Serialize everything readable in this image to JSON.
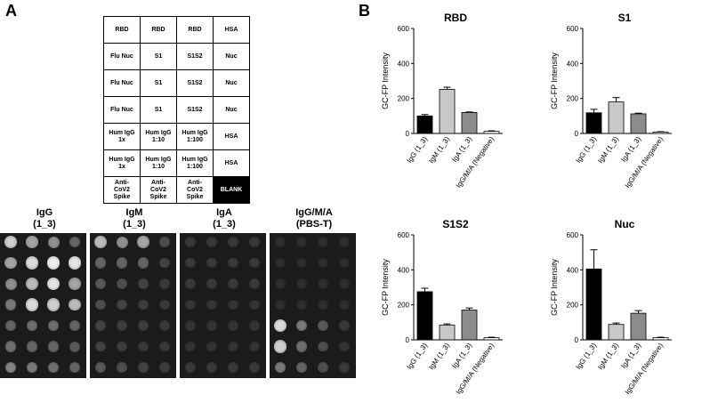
{
  "panel_a": {
    "letter": "A",
    "layout_table": [
      [
        "RBD",
        "RBD",
        "RBD",
        "HSA"
      ],
      [
        "Flu Nuc",
        "S1",
        "S1S2",
        "Nuc"
      ],
      [
        "Flu Nuc",
        "S1",
        "S1S2",
        "Nuc"
      ],
      [
        "Flu Nuc",
        "S1",
        "S1S2",
        "Nuc"
      ],
      [
        "Hum IgG\n1x",
        "Hum IgG\n1:10",
        "Hum IgG\n1:100",
        "HSA"
      ],
      [
        "Hum IgG\n1x",
        "Hum IgG\n1:10",
        "Hum IgG\n1:100",
        "HSA"
      ],
      [
        "Anti-\nCoV2\nSpike",
        "Anti-\nCoV2\nSpike",
        "Anti-\nCoV2\nSpike",
        "BLANK"
      ]
    ],
    "blots": [
      {
        "label": "IgG\n(1_3)",
        "intensity": [
          [
            0.8,
            0.6,
            0.5,
            0.3
          ],
          [
            0.6,
            0.85,
            0.95,
            0.9
          ],
          [
            0.5,
            0.7,
            0.9,
            0.6
          ],
          [
            0.4,
            0.85,
            0.8,
            0.7
          ],
          [
            0.3,
            0.35,
            0.35,
            0.3
          ],
          [
            0.35,
            0.3,
            0.3,
            0.25
          ],
          [
            0.45,
            0.4,
            0.35,
            0.3
          ]
        ]
      },
      {
        "label": "IgM\n(1_3)",
        "intensity": [
          [
            0.7,
            0.5,
            0.6,
            0.2
          ],
          [
            0.3,
            0.3,
            0.3,
            0.15
          ],
          [
            0.25,
            0.2,
            0.15,
            0.1
          ],
          [
            0.2,
            0.15,
            0.12,
            0.1
          ],
          [
            0.15,
            0.12,
            0.12,
            0.1
          ],
          [
            0.15,
            0.12,
            0.1,
            0.1
          ],
          [
            0.25,
            0.2,
            0.15,
            0.12
          ]
        ]
      },
      {
        "label": "IgA\n(1_3)",
        "intensity": [
          [
            0.1,
            0.1,
            0.1,
            0.1
          ],
          [
            0.1,
            0.1,
            0.1,
            0.1
          ],
          [
            0.1,
            0.1,
            0.1,
            0.1
          ],
          [
            0.08,
            0.08,
            0.08,
            0.08
          ],
          [
            0.08,
            0.08,
            0.08,
            0.08
          ],
          [
            0.08,
            0.08,
            0.08,
            0.08
          ],
          [
            0.1,
            0.1,
            0.1,
            0.1
          ]
        ]
      },
      {
        "label": "IgG/M/A\n(PBS-T)",
        "intensity": [
          [
            0.05,
            0.05,
            0.05,
            0.05
          ],
          [
            0.05,
            0.05,
            0.05,
            0.05
          ],
          [
            0.05,
            0.05,
            0.05,
            0.05
          ],
          [
            0.05,
            0.05,
            0.05,
            0.05
          ],
          [
            0.85,
            0.4,
            0.25,
            0.1
          ],
          [
            0.8,
            0.35,
            0.2,
            0.08
          ],
          [
            0.4,
            0.3,
            0.2,
            0.1
          ]
        ]
      }
    ]
  },
  "panel_b": {
    "letter": "B",
    "colors": {
      "IgG": "#000000",
      "IgM": "#c8c8c8",
      "IgA": "#8c8c8c",
      "Neg": "#ffffff"
    },
    "chart_data": [
      {
        "type": "bar",
        "title": "RBD",
        "ylabel": "GC-FP Intensity",
        "ylim": [
          0,
          600
        ],
        "yticks": [
          0,
          200,
          400,
          600
        ],
        "categories": [
          "IgG (1_3)",
          "IgM (1_3)",
          "IgA (1_3)",
          "IgG/M/A (Negative)"
        ],
        "values": [
          100,
          252,
          120,
          12
        ],
        "errors": [
          8,
          12,
          3,
          3
        ]
      },
      {
        "type": "bar",
        "title": "S1",
        "ylabel": "GC-FP Intensity",
        "ylim": [
          0,
          600
        ],
        "yticks": [
          0,
          200,
          400,
          600
        ],
        "categories": [
          "IgG (1_3)",
          "IgM (1_3)",
          "IgA (1_3)",
          "IgG/M/A (Negative)"
        ],
        "values": [
          118,
          180,
          112,
          8
        ],
        "errors": [
          20,
          25,
          4,
          2
        ]
      },
      {
        "type": "bar",
        "title": "S1S2",
        "ylabel": "GC-FP Intensity",
        "ylim": [
          0,
          600
        ],
        "yticks": [
          0,
          200,
          400,
          600
        ],
        "categories": [
          "IgG (1_3)",
          "IgM (1_3)",
          "IgA (1_3)",
          "IgG/M/A (Negative)"
        ],
        "values": [
          275,
          85,
          170,
          12
        ],
        "errors": [
          20,
          6,
          12,
          3
        ]
      },
      {
        "type": "bar",
        "title": "Nuc",
        "ylabel": "GC-FP Intensity",
        "ylim": [
          0,
          600
        ],
        "yticks": [
          0,
          200,
          400,
          600
        ],
        "categories": [
          "IgG (1_3)",
          "IgM (1_3)",
          "IgA (1_3)",
          "IgG/M/A (Negative)"
        ],
        "values": [
          405,
          88,
          152,
          12
        ],
        "errors": [
          110,
          8,
          15,
          3
        ]
      }
    ]
  }
}
